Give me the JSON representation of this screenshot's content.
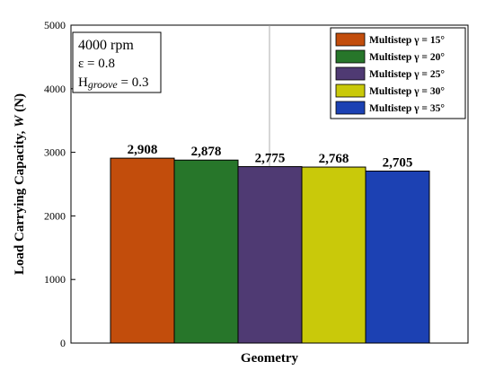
{
  "chart_data": {
    "type": "bar",
    "title": "",
    "xlabel": "Geometry",
    "ylabel": "Load Carrying Capacity, W (N)",
    "ylabel_main": "Load Carrying Capacity, ",
    "ylabel_var": "W",
    "ylabel_unit": " (N)",
    "ylim": [
      0,
      5000
    ],
    "yticks": [
      0,
      1000,
      2000,
      3000,
      4000,
      5000
    ],
    "grid": false,
    "legend_position": "top-right",
    "annotation": {
      "speed": "4000 rpm",
      "eccentricity": "ε = 0.8",
      "groove_prefix": "H",
      "groove_subscript": "groove",
      "groove_value": " = 0.3"
    },
    "series": [
      {
        "name": "Multistep γ = 15°",
        "value": 2908,
        "label": "2,908",
        "color": "#c24d0c"
      },
      {
        "name": "Multistep γ = 20°",
        "value": 2878,
        "label": "2,878",
        "color": "#27762a"
      },
      {
        "name": "Multistep γ = 25°",
        "value": 2775,
        "label": "2,775",
        "color": "#4f3a73"
      },
      {
        "name": "Multistep γ = 30°",
        "value": 2768,
        "label": "2,768",
        "color": "#c9c90a"
      },
      {
        "name": "Multistep γ = 35°",
        "value": 2705,
        "label": "2,705",
        "color": "#1c41b3"
      }
    ]
  }
}
